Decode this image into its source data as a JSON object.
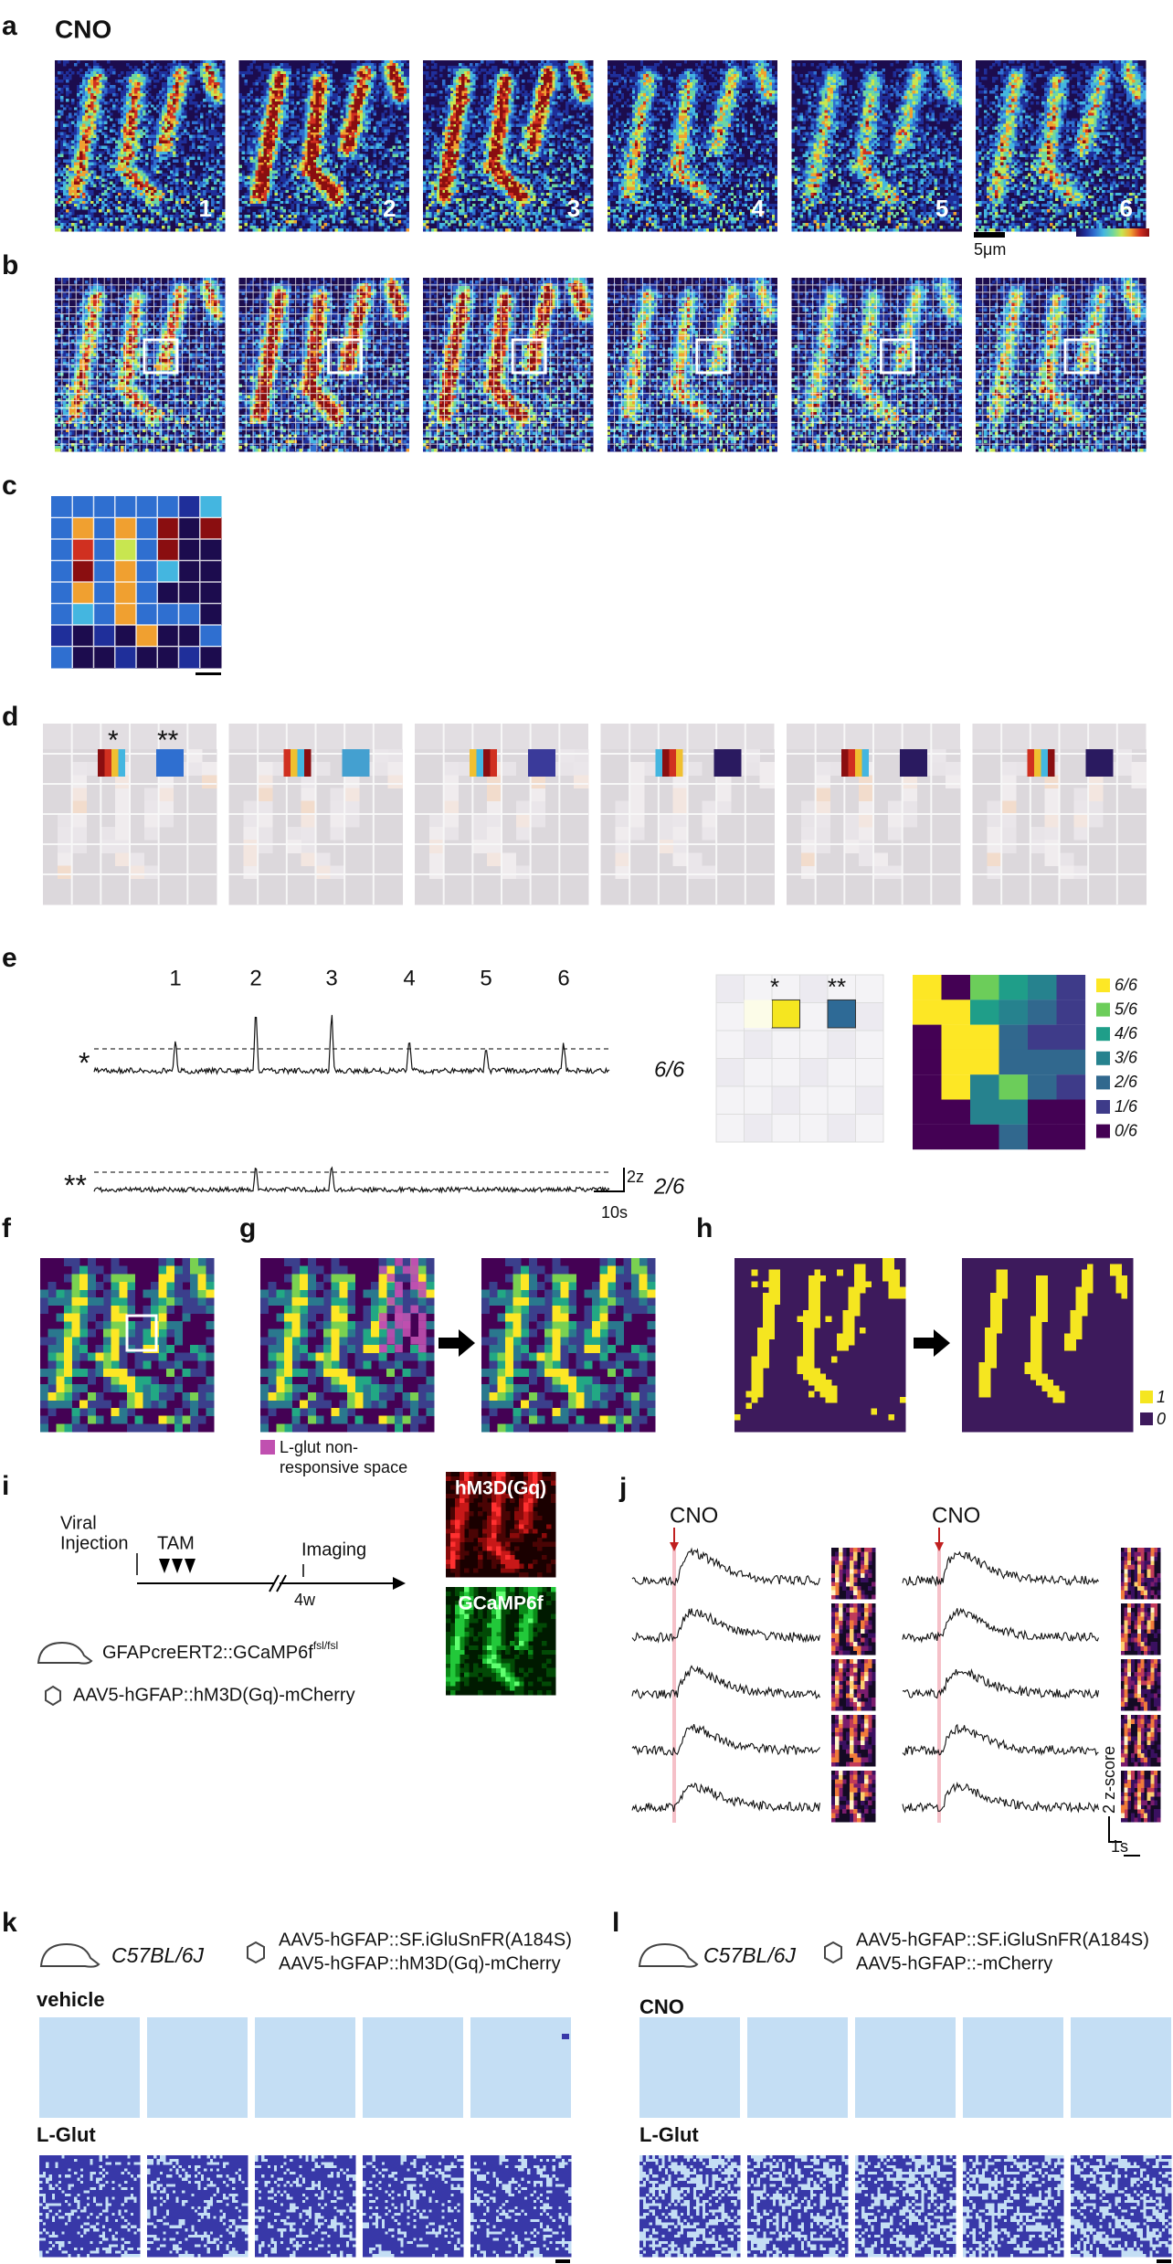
{
  "figure": {
    "a": {
      "letter": "a",
      "condition": "CNO",
      "frames": [
        "1",
        "2",
        "3",
        "4",
        "5",
        "6"
      ],
      "scale_bar": "5μm"
    },
    "b": {
      "letter": "b"
    },
    "c": {
      "letter": "c"
    },
    "d": {
      "letter": "d",
      "markers": [
        "*",
        "**"
      ]
    },
    "e": {
      "letter": "e",
      "events": [
        "1",
        "2",
        "3",
        "4",
        "5",
        "6"
      ],
      "traces": [
        {
          "marker": "*",
          "ratio": "6/6"
        },
        {
          "marker": "**",
          "ratio": "2/6"
        }
      ],
      "scale_y": "2z",
      "scale_x": "10s",
      "map_markers": [
        "*",
        "**"
      ],
      "legend": [
        "6/6",
        "5/6",
        "4/6",
        "3/6",
        "2/6",
        "1/6",
        "0/6"
      ]
    },
    "f": {
      "letter": "f"
    },
    "g": {
      "letter": "g",
      "legend_lines": [
        "L-glut non-",
        "responsive space"
      ]
    },
    "h": {
      "letter": "h",
      "legend": [
        "1",
        "0"
      ]
    },
    "i": {
      "letter": "i",
      "timeline": {
        "injection": [
          "Viral",
          "Injection"
        ],
        "tam": "TAM",
        "imaging": "Imaging",
        "interval": "4w"
      },
      "mouse_line": "GFAPcreERT2::GCaMP6f",
      "mouse_sup": "fsl/fsl",
      "virus": "AAV5-hGFAP::hM3D(Gq)-mCherry",
      "images": [
        "hM3D(Gq)",
        "GCaMP6f"
      ]
    },
    "j": {
      "letter": "j",
      "conditions": [
        "CNO",
        "CNO"
      ],
      "scale_y": "2 z-score",
      "scale_x": "1s"
    },
    "k": {
      "letter": "k",
      "strain": "C57BL/6J",
      "viruses": [
        "AAV5-hGFAP::SF.iGluSnFR(A184S)",
        "AAV5-hGFAP::hM3D(Gq)-mCherry"
      ],
      "rows": [
        "vehicle",
        "L-Glut"
      ]
    },
    "l": {
      "letter": "l",
      "strain": "C57BL/6J",
      "viruses": [
        "AAV5-hGFAP::SF.iGluSnFR(A184S)",
        "AAV5-hGFAP::-mCherry"
      ],
      "rows": [
        "CNO",
        "L-Glut"
      ]
    }
  }
}
